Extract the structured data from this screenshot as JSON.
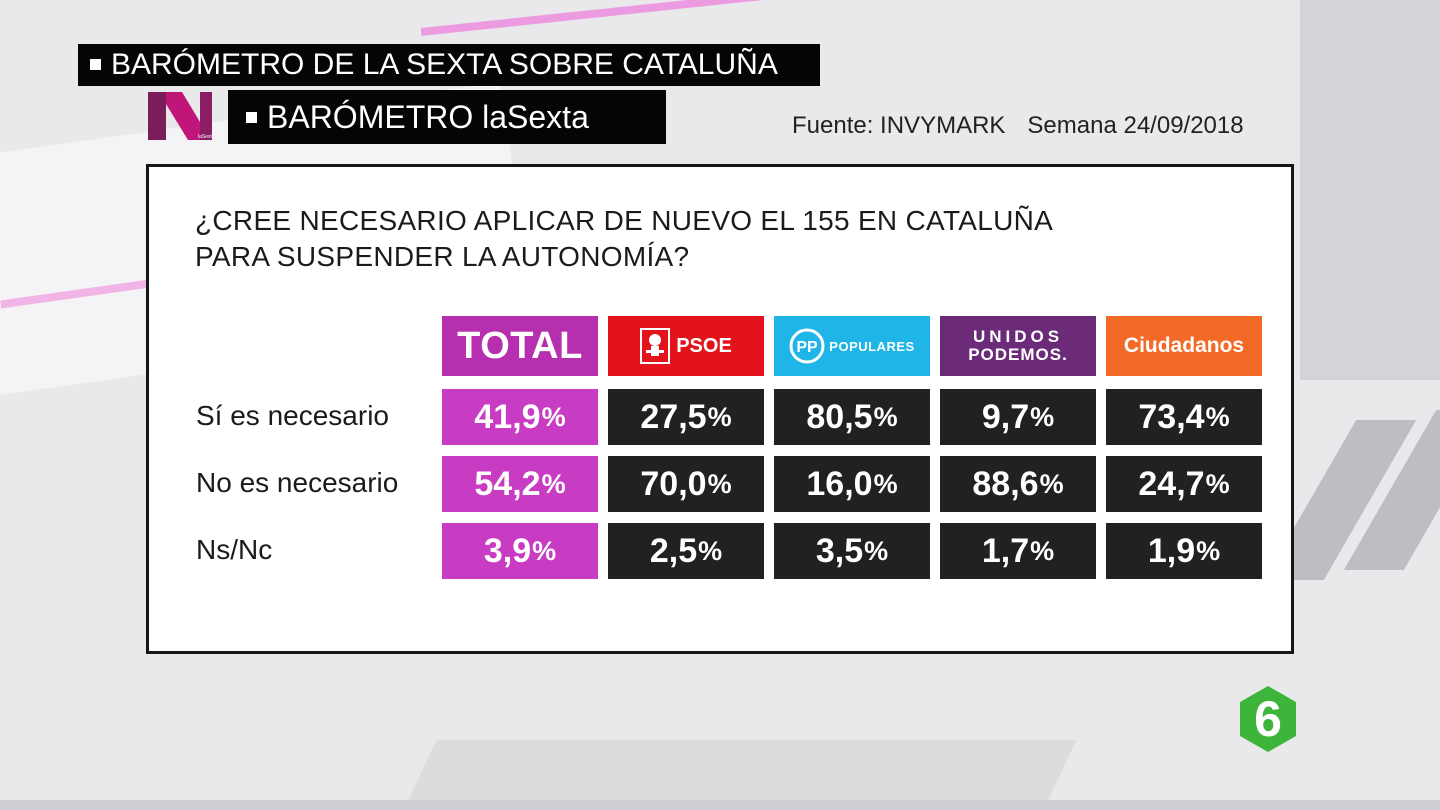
{
  "header": {
    "top_title": "BARÓMETRO DE LA SEXTA SOBRE CATALUÑA",
    "subtitle": "BARÓMETRO laSexta",
    "logo_text": "N",
    "logo_small_text": "laSexta",
    "source": "Fuente: INVYMARK",
    "week": "Semana 24/09/2018"
  },
  "colors": {
    "total": "#b62fae",
    "psoe": "#e3121b",
    "pp": "#1fb5e6",
    "podemos": "#6b2b78",
    "cs": "#f26a26",
    "data_cell": "#212121"
  },
  "chart_data": {
    "type": "table",
    "title": "¿CREE NECESARIO APLICAR DE NUEVO EL 155 EN CATALUÑA PARA SUSPENDER LA AUTONOMÍA?",
    "title_lines": [
      "¿CREE NECESARIO APLICAR DE NUEVO EL 155 EN CATALUÑA",
      "PARA SUSPENDER LA AUTONOMÍA?"
    ],
    "columns": [
      "TOTAL",
      "PSOE",
      "POPULARES",
      "UNIDOS PODEMOS.",
      "Ciudadanos"
    ],
    "rows": [
      {
        "label": "Sí es necesario",
        "values": [
          41.9,
          27.5,
          80.5,
          9.7,
          73.4
        ],
        "display": [
          "41,9",
          "27,5",
          "80,5",
          "9,7",
          "73,4"
        ]
      },
      {
        "label": "No es necesario",
        "values": [
          54.2,
          70.0,
          16.0,
          88.6,
          24.7
        ],
        "display": [
          "54,2",
          "70,0",
          "16,0",
          "88,6",
          "24,7"
        ]
      },
      {
        "label": "Ns/Nc",
        "values": [
          3.9,
          2.5,
          3.5,
          1.7,
          1.9
        ],
        "display": [
          "3,9",
          "2,5",
          "3,5",
          "1,7",
          "1,9"
        ]
      }
    ],
    "unit": "%"
  },
  "party_labels": {
    "total": "TOTAL",
    "psoe": "PSOE",
    "pp": "POPULARES",
    "pp_mark": "PP",
    "podemos_line1": "UNIDOS",
    "podemos_line2": "PODEMOS.",
    "cs": "Ciudadanos"
  },
  "channel_logo": "6"
}
